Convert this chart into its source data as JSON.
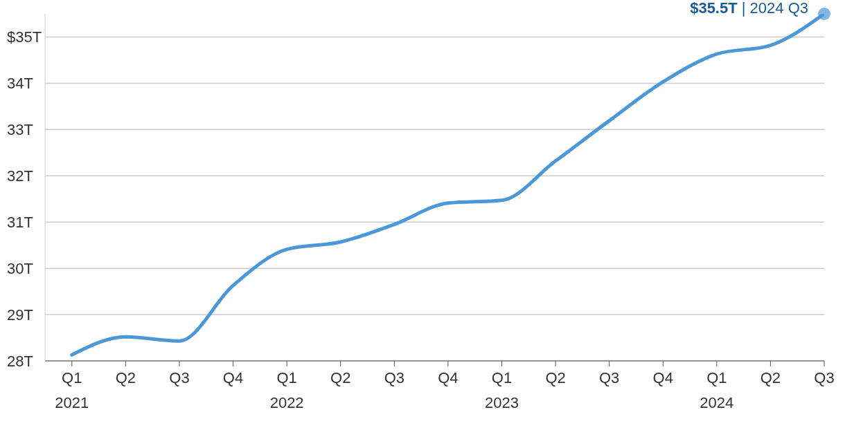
{
  "chart_data": {
    "type": "line",
    "categories": [
      "Q1 2021",
      "Q2",
      "Q3",
      "Q4",
      "Q1 2022",
      "Q2",
      "Q3",
      "Q4",
      "Q1 2023",
      "Q2",
      "Q3",
      "Q4",
      "Q1 2024",
      "Q2",
      "Q3"
    ],
    "series": [
      {
        "color": "#4a98d8",
        "values": [
          28.13,
          28.52,
          28.43,
          29.63,
          30.41,
          30.57,
          30.95,
          31.41,
          31.47,
          32.32,
          33.19,
          34.03,
          34.63,
          34.82,
          35.5
        ]
      }
    ],
    "yticks": [
      {
        "value": 28,
        "label": "28T"
      },
      {
        "value": 29,
        "label": "29T"
      },
      {
        "value": 30,
        "label": "30T"
      },
      {
        "value": 31,
        "label": "31T"
      },
      {
        "value": 32,
        "label": "32T"
      },
      {
        "value": 33,
        "label": "33T"
      },
      {
        "value": 34,
        "label": "34T"
      },
      {
        "value": 35,
        "label": "$35T"
      }
    ],
    "ylim": [
      28,
      35.5
    ],
    "grid": "y",
    "marker": "none",
    "line_style": "solid",
    "annotations": [
      "$35.5T | 2024 Q3"
    ]
  }
}
